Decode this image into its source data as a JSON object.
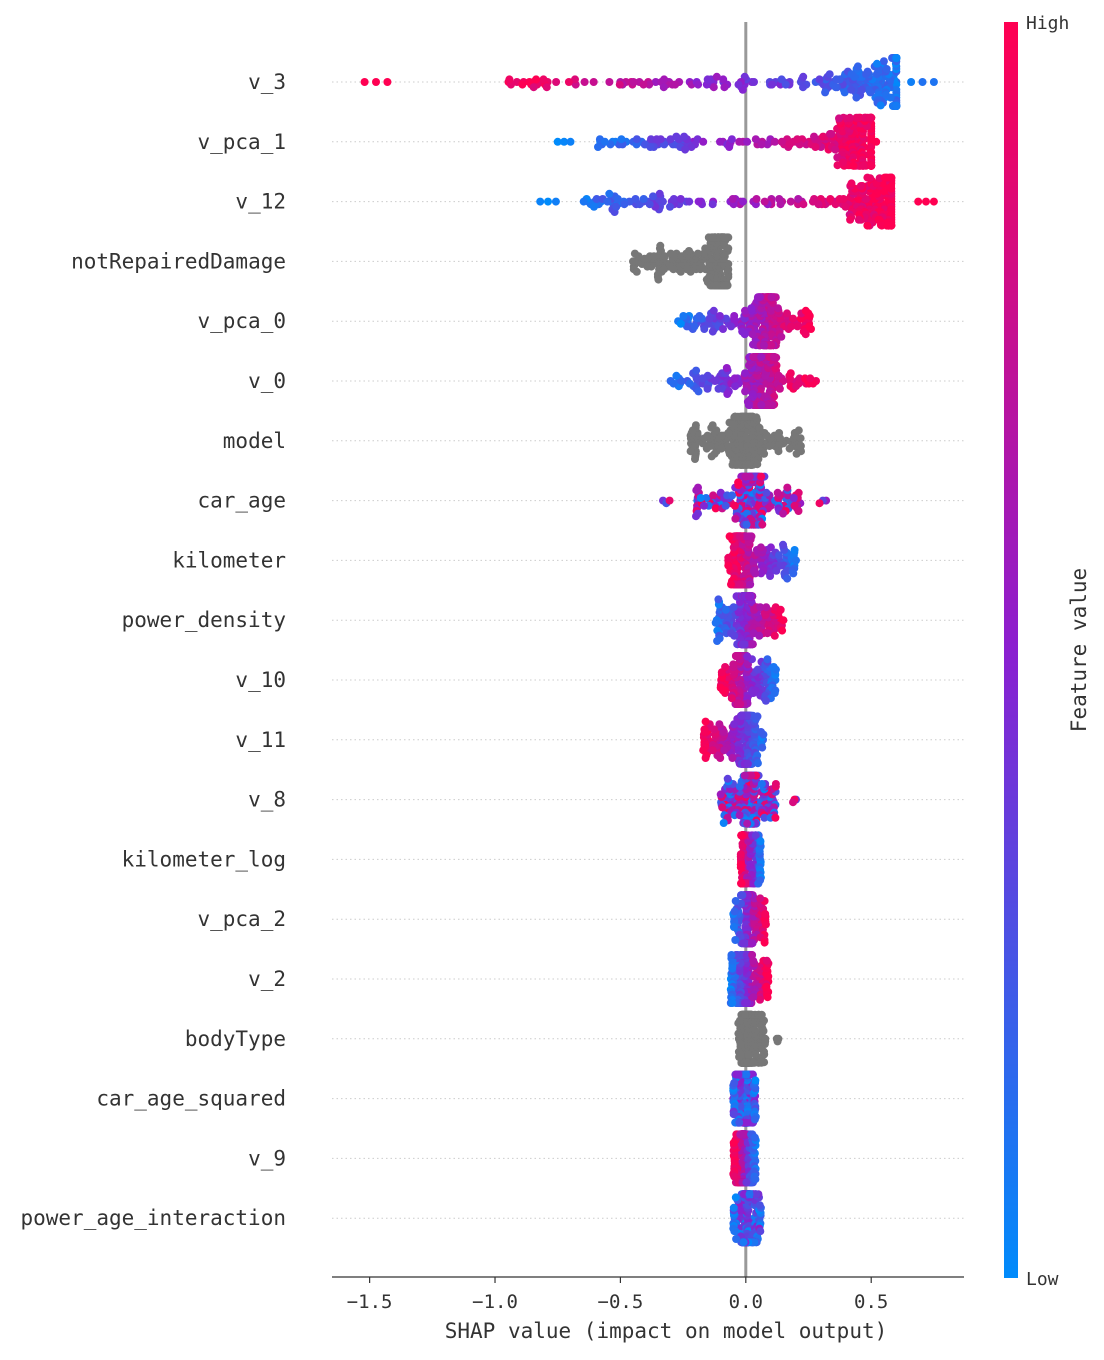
{
  "chart_data": {
    "type": "scatter",
    "subtype": "shap-beeswarm",
    "xlabel": "SHAP value (impact on model output)",
    "xlim": [
      -1.65,
      0.87
    ],
    "xticks": [
      -1.5,
      -1.0,
      -0.5,
      0.0,
      0.5
    ],
    "xtick_labels": [
      "−1.5",
      "−1.0",
      "−0.5",
      "0.0",
      "0.5"
    ],
    "colorbar": {
      "label": "Feature value",
      "high": "High",
      "low": "Low",
      "low_color": "#008bfb",
      "high_color": "#ff0052"
    },
    "neutral_color": "#777777",
    "features": [
      {
        "name": "v_3",
        "min": -1.52,
        "max": 0.75,
        "range": [
          -0.95,
          0.6
        ],
        "peak": 0.55,
        "mode": "high_left"
      },
      {
        "name": "v_pca_1",
        "min": -0.75,
        "max": 0.52,
        "range": [
          -0.6,
          0.5
        ],
        "peak": 0.45,
        "mode": "high_right"
      },
      {
        "name": "v_12",
        "min": -0.82,
        "max": 0.75,
        "range": [
          -0.65,
          0.58
        ],
        "peak": 0.52,
        "mode": "high_right"
      },
      {
        "name": "notRepairedDamage",
        "min": -0.45,
        "max": -0.07,
        "range": [
          -0.45,
          -0.07
        ],
        "peak": -0.11,
        "mode": "gray"
      },
      {
        "name": "v_pca_0",
        "min": -0.27,
        "max": 0.26,
        "range": [
          -0.25,
          0.26
        ],
        "peak": 0.08,
        "mode": "high_right"
      },
      {
        "name": "v_0",
        "min": -0.3,
        "max": 0.28,
        "range": [
          -0.28,
          0.26
        ],
        "peak": 0.07,
        "mode": "high_right"
      },
      {
        "name": "model",
        "min": -0.22,
        "max": 0.22,
        "range": [
          -0.22,
          0.22
        ],
        "peak": 0.0,
        "mode": "gray"
      },
      {
        "name": "car_age",
        "min": -0.33,
        "max": 0.32,
        "range": [
          -0.2,
          0.22
        ],
        "peak": 0.02,
        "mode": "mixed"
      },
      {
        "name": "kilometer",
        "min": -0.07,
        "max": 0.2,
        "range": [
          -0.07,
          0.2
        ],
        "peak": -0.02,
        "mode": "high_left"
      },
      {
        "name": "power_density",
        "min": -0.12,
        "max": 0.15,
        "range": [
          -0.12,
          0.15
        ],
        "peak": 0.0,
        "mode": "high_right"
      },
      {
        "name": "v_10",
        "min": -0.1,
        "max": 0.12,
        "range": [
          -0.1,
          0.12
        ],
        "peak": -0.02,
        "mode": "high_left"
      },
      {
        "name": "v_11",
        "min": -0.17,
        "max": 0.07,
        "range": [
          -0.17,
          0.07
        ],
        "peak": 0.0,
        "mode": "high_left"
      },
      {
        "name": "v_8",
        "min": -0.1,
        "max": 0.2,
        "range": [
          -0.1,
          0.12
        ],
        "peak": 0.02,
        "mode": "mixed"
      },
      {
        "name": "kilometer_log",
        "min": -0.02,
        "max": 0.06,
        "range": [
          -0.02,
          0.06
        ],
        "peak": -0.01,
        "mode": "high_left"
      },
      {
        "name": "v_pca_2",
        "min": -0.05,
        "max": 0.08,
        "range": [
          -0.05,
          0.08
        ],
        "peak": 0.01,
        "mode": "high_right"
      },
      {
        "name": "v_2",
        "min": -0.06,
        "max": 0.09,
        "range": [
          -0.06,
          0.09
        ],
        "peak": 0.0,
        "mode": "high_right"
      },
      {
        "name": "bodyType",
        "min": -0.03,
        "max": 0.13,
        "range": [
          -0.03,
          0.08
        ],
        "peak": 0.0,
        "mode": "gray"
      },
      {
        "name": "car_age_squared",
        "min": -0.05,
        "max": 0.04,
        "range": [
          -0.05,
          0.04
        ],
        "peak": 0.0,
        "mode": "low_mostly"
      },
      {
        "name": "v_9",
        "min": -0.05,
        "max": 0.04,
        "range": [
          -0.05,
          0.04
        ],
        "peak": -0.01,
        "mode": "high_left"
      },
      {
        "name": "power_age_interaction",
        "min": -0.05,
        "max": 0.06,
        "range": [
          -0.05,
          0.06
        ],
        "peak": 0.0,
        "mode": "low_mostly"
      }
    ]
  }
}
